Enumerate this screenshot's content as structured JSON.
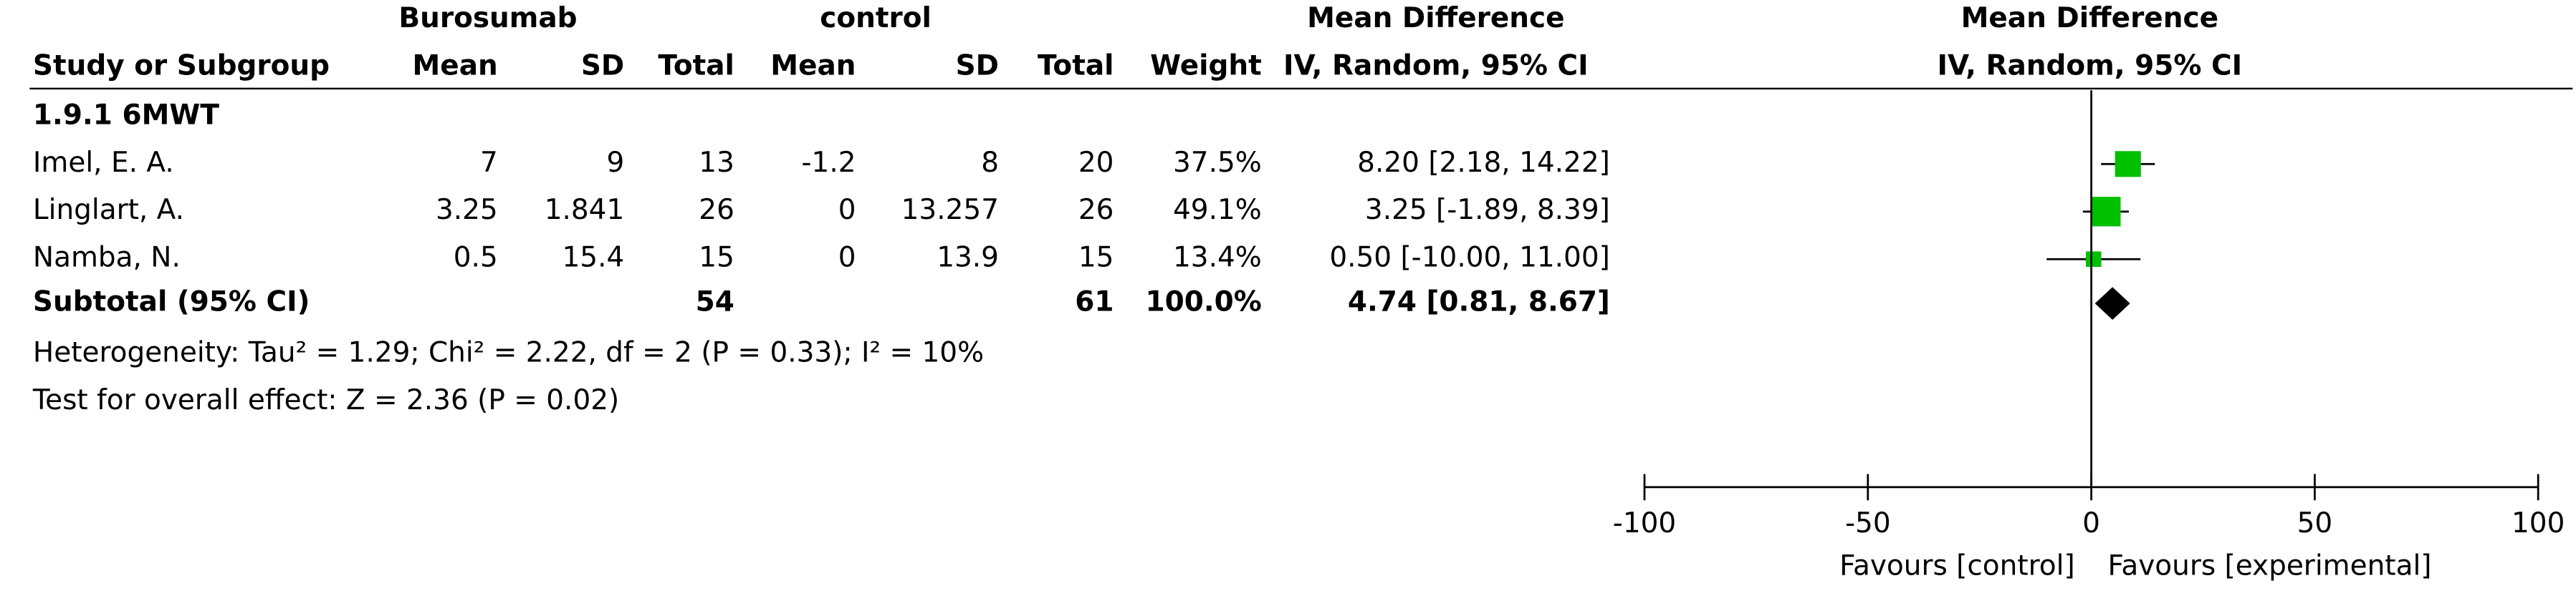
{
  "chart_data": {
    "type": "forest",
    "group_headers": {
      "experimental": "Burosumab",
      "control": "control",
      "effect": "Mean Difference",
      "plot": "Mean Difference"
    },
    "column_headers": [
      "Study or Subgroup",
      "Mean",
      "SD",
      "Total",
      "Mean",
      "SD",
      "Total",
      "Weight",
      "IV, Random, 95% CI"
    ],
    "plot_header": "IV, Random, 95% CI",
    "subgroup": "1.9.1 6MWT",
    "studies": [
      {
        "name": "Imel, E. A.",
        "exp_mean": 7,
        "exp_sd": 9,
        "exp_total": 13,
        "ctrl_mean": -1.2,
        "ctrl_sd": 8,
        "ctrl_total": 20,
        "weight": 37.5,
        "weight_label": "37.5%",
        "md": 8.2,
        "ci_low": 2.18,
        "ci_high": 14.22,
        "effect_label": "8.20 [2.18, 14.22]"
      },
      {
        "name": "Linglart, A.",
        "exp_mean": 3.25,
        "exp_sd": 1.841,
        "exp_total": 26,
        "ctrl_mean": 0,
        "ctrl_sd": 13.257,
        "ctrl_total": 26,
        "weight": 49.1,
        "weight_label": "49.1%",
        "md": 3.25,
        "ci_low": -1.89,
        "ci_high": 8.39,
        "effect_label": "3.25 [-1.89, 8.39]"
      },
      {
        "name": "Namba, N.",
        "exp_mean": 0.5,
        "exp_sd": 15.4,
        "exp_total": 15,
        "ctrl_mean": 0,
        "ctrl_sd": 13.9,
        "ctrl_total": 15,
        "weight": 13.4,
        "weight_label": "13.4%",
        "md": 0.5,
        "ci_low": -10,
        "ci_high": 11,
        "effect_label": "0.50 [-10.00, 11.00]"
      }
    ],
    "subtotal": {
      "label": "Subtotal (95% CI)",
      "exp_total": 54,
      "ctrl_total": 61,
      "weight": 100,
      "weight_label": "100.0%",
      "md": 4.74,
      "ci_low": 0.81,
      "ci_high": 8.67,
      "effect_label": "4.74 [0.81, 8.67]"
    },
    "heterogeneity": "Heterogeneity: Tau² = 1.29; Chi² = 2.22, df = 2 (P = 0.33); I² = 10%",
    "overall_effect": "Test for overall effect: Z = 2.36 (P = 0.02)",
    "xlim": [
      -100,
      100
    ],
    "xticks": [
      -100,
      -50,
      0,
      50,
      100
    ],
    "xlabel_left": "Favours [control]",
    "xlabel_right": "Favours [experimental]",
    "color": "#00c000"
  }
}
